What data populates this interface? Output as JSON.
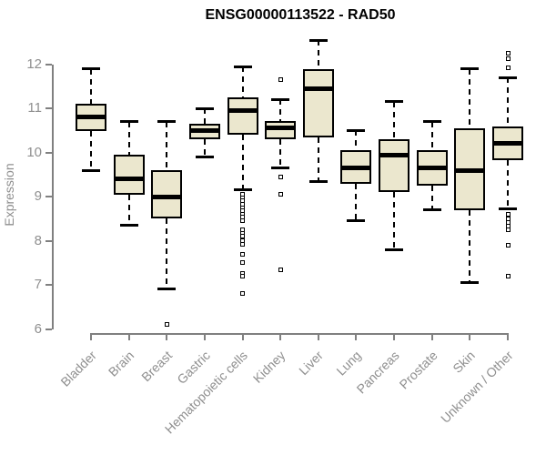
{
  "chart_data": {
    "type": "box",
    "title": "ENSG00000113522 - RAD50",
    "xlabel": "",
    "ylabel": "Expression",
    "ylim": [
      5.9,
      12.65
    ],
    "yticks": [
      6,
      7,
      8,
      9,
      10,
      11,
      12
    ],
    "grid": false,
    "legend": "none",
    "colors": {
      "box_fill": "#EBE7CE",
      "box_stroke": "#000000",
      "axis_line": "#808080",
      "axis_text": "#8F8F8F",
      "title_text": "#000000",
      "background": "#FFFFFF"
    },
    "categories": [
      "Bladder",
      "Brain",
      "Breast",
      "Gastric",
      "Hematopoietic cells",
      "Kidney",
      "Liver",
      "Lung",
      "Pancreas",
      "Prostate",
      "Skin",
      "Unknown / Other"
    ],
    "series": [
      {
        "name": "Bladder",
        "whisker_low": 9.6,
        "q1": 10.48,
        "median": 10.8,
        "q3": 11.1,
        "whisker_high": 11.9,
        "outliers": []
      },
      {
        "name": "Brain",
        "whisker_low": 8.35,
        "q1": 9.05,
        "median": 9.4,
        "q3": 9.95,
        "whisker_high": 10.7,
        "outliers": []
      },
      {
        "name": "Breast",
        "whisker_low": 6.9,
        "q1": 8.5,
        "median": 9.0,
        "q3": 9.6,
        "whisker_high": 10.7,
        "outliers": [
          6.1
        ]
      },
      {
        "name": "Gastric",
        "whisker_low": 9.9,
        "q1": 10.3,
        "median": 10.5,
        "q3": 10.65,
        "whisker_high": 11.0,
        "outliers": []
      },
      {
        "name": "Hematopoietic cells",
        "whisker_low": 9.15,
        "q1": 10.4,
        "median": 10.95,
        "q3": 11.25,
        "whisker_high": 11.95,
        "outliers": [
          9.05,
          8.98,
          8.9,
          8.83,
          8.75,
          8.68,
          8.6,
          8.53,
          8.45,
          8.25,
          8.17,
          8.1,
          8.0,
          7.93,
          7.7,
          7.5,
          7.27,
          7.2,
          6.8
        ]
      },
      {
        "name": "Kidney",
        "whisker_low": 9.65,
        "q1": 10.3,
        "median": 10.55,
        "q3": 10.72,
        "whisker_high": 11.2,
        "outliers": [
          11.65,
          9.45,
          9.05,
          7.35
        ]
      },
      {
        "name": "Liver",
        "whisker_low": 9.35,
        "q1": 10.35,
        "median": 11.45,
        "q3": 11.9,
        "whisker_high": 12.55,
        "outliers": []
      },
      {
        "name": "Lung",
        "whisker_low": 8.45,
        "q1": 9.3,
        "median": 9.65,
        "q3": 10.05,
        "whisker_high": 10.5,
        "outliers": []
      },
      {
        "name": "Pancreas",
        "whisker_low": 7.8,
        "q1": 9.1,
        "median": 9.95,
        "q3": 10.3,
        "whisker_high": 11.15,
        "outliers": []
      },
      {
        "name": "Prostate",
        "whisker_low": 8.7,
        "q1": 9.25,
        "median": 9.65,
        "q3": 10.05,
        "whisker_high": 10.7,
        "outliers": []
      },
      {
        "name": "Skin",
        "whisker_low": 7.05,
        "q1": 8.7,
        "median": 9.6,
        "q3": 10.55,
        "whisker_high": 11.9,
        "outliers": []
      },
      {
        "name": "Unknown / Other",
        "whisker_low": 8.72,
        "q1": 9.83,
        "median": 10.2,
        "q3": 10.6,
        "whisker_high": 11.7,
        "outliers": [
          12.25,
          12.12,
          11.92,
          8.6,
          8.5,
          8.42,
          8.33,
          8.25,
          7.9,
          7.2
        ]
      }
    ]
  }
}
